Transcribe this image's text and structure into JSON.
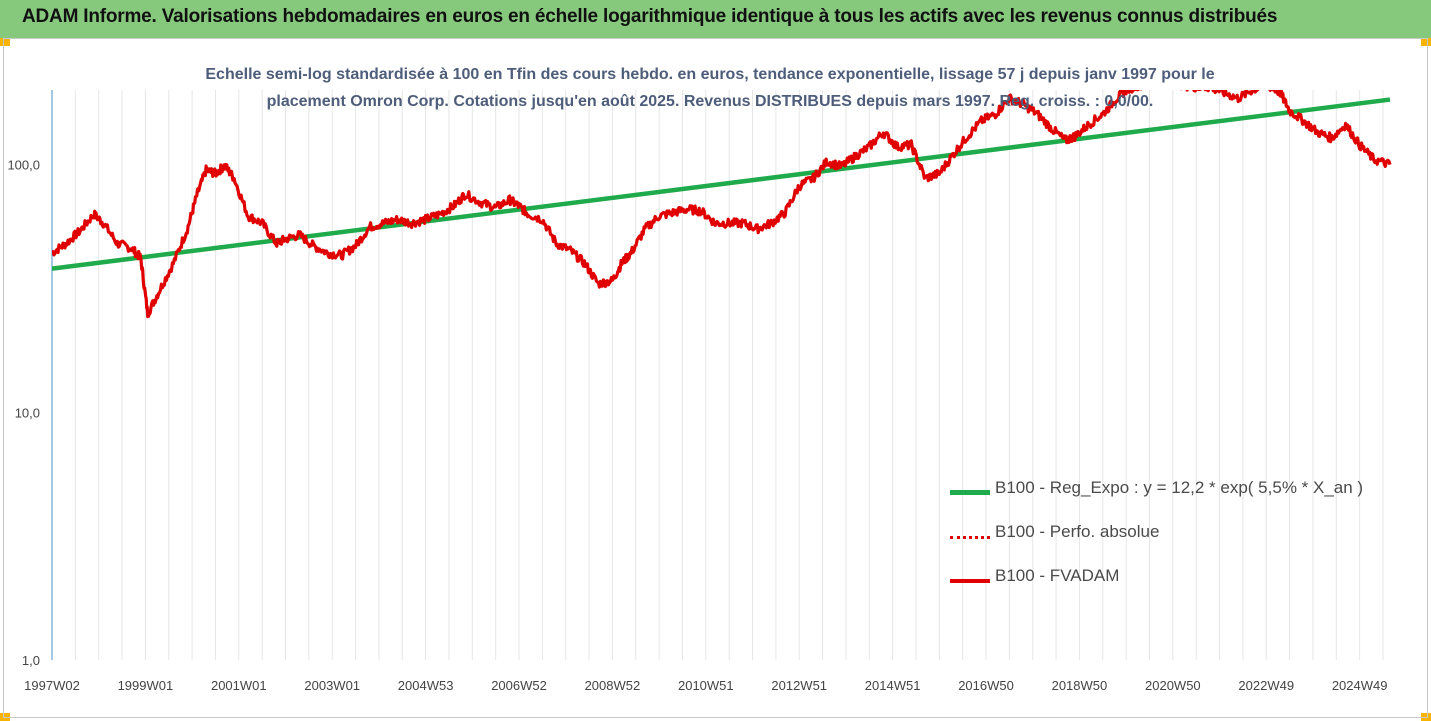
{
  "header": {
    "title": "ADAM Informe. Valorisations hebdomadaires en euros en échelle logarithmique identique à tous les actifs avec les revenus connus distribués"
  },
  "colors": {
    "header_bg": "#86c97d",
    "trend": "#1faa4b",
    "series": "#e00000",
    "grid": "#e6e6e6",
    "axis": "#4a8fc9"
  },
  "chart_data": {
    "type": "line",
    "title_line1": "Echelle semi-log standardisée à 100 en Tfin des cours hebdo. en euros, tendance exponentielle, lissage 57 j depuis janv 1997 pour le",
    "title_line2": "placement Omron Corp. Cotations jusqu'en août 2025. Revenus DISTRIBUES depuis mars 1997. Reg. croiss. : 0,0/00.",
    "y_scale": "log",
    "ylim": [
      1,
      200
    ],
    "y_ticks": [
      "1,0",
      "10,0",
      "100,0"
    ],
    "y_tick_values": [
      1,
      10,
      100
    ],
    "x_range": [
      1997.0,
      2025.65
    ],
    "x_ticks": [
      "1997W02",
      "1999W01",
      "2001W01",
      "2003W01",
      "2004W53",
      "2006W52",
      "2008W52",
      "2010W51",
      "2012W51",
      "2014W51",
      "2016W50",
      "2018W50",
      "2020W50",
      "2022W49",
      "2024W49"
    ],
    "x_tick_years": [
      1997.0,
      1999.0,
      2001.0,
      2003.0,
      2005.0,
      2007.0,
      2009.0,
      2011.0,
      2013.0,
      2015.0,
      2017.0,
      2019.0,
      2021.0,
      2023.0,
      2025.0
    ],
    "grid": "vertical",
    "legend_position": "bottom-right",
    "series": [
      {
        "name": "B100 - Reg_Expo : y = 12,2 * exp( 5,5% *  X_an )",
        "style": "solid-green",
        "x": [
          1997.0,
          2025.65
        ],
        "y": [
          38,
          183
        ]
      },
      {
        "name": "B100 - Perfo. absolue",
        "style": "dotted-red",
        "x": [],
        "y": []
      },
      {
        "name": "B100 - FVADAM",
        "style": "solid-red",
        "x": [
          1997.0,
          1997.3,
          1997.6,
          1997.9,
          1998.1,
          1998.4,
          1998.7,
          1998.9,
          1999.05,
          1999.3,
          1999.6,
          1999.9,
          2000.1,
          2000.3,
          2000.5,
          2000.7,
          2000.9,
          2001.2,
          2001.5,
          2001.8,
          2002.0,
          2002.3,
          2002.6,
          2002.9,
          2003.2,
          2003.5,
          2003.8,
          2004.1,
          2004.4,
          2004.7,
          2005.0,
          2005.3,
          2005.6,
          2005.85,
          2006.2,
          2006.5,
          2006.8,
          2007.0,
          2007.2,
          2007.5,
          2007.8,
          2008.1,
          2008.4,
          2008.7,
          2009.0,
          2009.2,
          2009.4,
          2009.7,
          2010.0,
          2010.3,
          2010.6,
          2010.9,
          2011.2,
          2011.5,
          2011.8,
          2012.1,
          2012.4,
          2012.7,
          2013.0,
          2013.3,
          2013.6,
          2013.9,
          2014.2,
          2014.5,
          2014.8,
          2015.1,
          2015.4,
          2015.7,
          2016.0,
          2016.3,
          2016.6,
          2016.9,
          2017.2,
          2017.5,
          2017.8,
          2018.1,
          2018.4,
          2018.7,
          2018.9,
          2019.2,
          2019.5,
          2019.8,
          2020.0,
          2020.3,
          2020.6,
          2020.9,
          2021.2,
          2021.5,
          2021.8,
          2022.1,
          2022.4,
          2022.7,
          2023.0,
          2023.3,
          2023.5,
          2023.8,
          2024.1,
          2024.4,
          2024.7,
          2025.0,
          2025.3,
          2025.65
        ],
        "y": [
          44,
          48,
          54,
          63,
          58,
          48,
          46,
          42,
          25,
          31,
          40,
          55,
          75,
          95,
          92,
          99,
          88,
          62,
          58,
          48,
          50,
          52,
          47,
          44,
          43,
          47,
          56,
          58,
          60,
          58,
          60,
          63,
          68,
          76,
          70,
          67,
          72,
          68,
          63,
          60,
          48,
          45,
          40,
          33,
          34,
          40,
          44,
          55,
          62,
          64,
          66,
          65,
          58,
          58,
          58,
          55,
          58,
          64,
          82,
          88,
          103,
          98,
          108,
          118,
          135,
          118,
          120,
          88,
          92,
          110,
          130,
          150,
          160,
          185,
          175,
          160,
          140,
          125,
          130,
          145,
          160,
          185,
          200,
          210,
          215,
          215,
          210,
          205,
          205,
          195,
          185,
          200,
          210,
          195,
          165,
          150,
          135,
          128,
          145,
          120,
          105,
          100
        ]
      }
    ]
  }
}
